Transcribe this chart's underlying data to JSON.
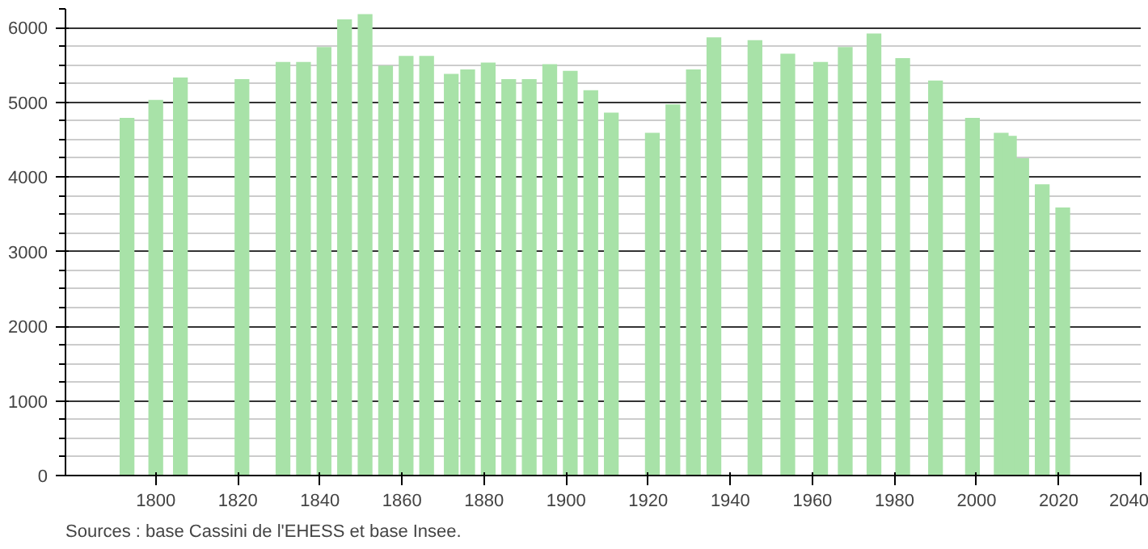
{
  "chart_data": {
    "type": "bar",
    "x": [
      1793,
      1800,
      1806,
      1821,
      1831,
      1836,
      1841,
      1846,
      1851,
      1856,
      1861,
      1866,
      1872,
      1876,
      1881,
      1886,
      1891,
      1896,
      1901,
      1906,
      1911,
      1921,
      1926,
      1931,
      1936,
      1946,
      1954,
      1962,
      1968,
      1975,
      1982,
      1990,
      1999,
      2006,
      2008,
      2011,
      2016,
      2021
    ],
    "values": [
      4790,
      5030,
      5330,
      5310,
      5540,
      5540,
      5740,
      6110,
      6180,
      5490,
      5620,
      5620,
      5380,
      5440,
      5530,
      5310,
      5310,
      5510,
      5420,
      5160,
      4860,
      4590,
      4970,
      5440,
      5870,
      5830,
      5650,
      5540,
      5740,
      5920,
      5590,
      5290,
      4790,
      4590,
      4550,
      4250,
      3900,
      3590
    ],
    "color": "#a8e2a8",
    "xlim": [
      1778,
      2040
    ],
    "xticks": [
      1800,
      1820,
      1840,
      1860,
      1880,
      1900,
      1920,
      1940,
      1960,
      1980,
      2000,
      2020,
      2040
    ],
    "ylim": [
      0,
      6250
    ],
    "yticks": [
      0,
      1000,
      2000,
      3000,
      4000,
      5000,
      6000
    ],
    "grid": "y",
    "annotations": [
      "Sources : base Cassini de l'EHESS et base Insee."
    ]
  }
}
